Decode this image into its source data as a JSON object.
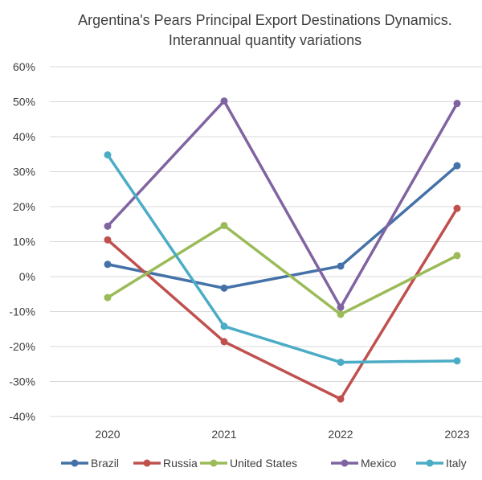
{
  "chart_data": {
    "type": "line",
    "title": [
      "Argentina's Pears Principal Export Destinations Dynamics.",
      "Interannual quantity variations"
    ],
    "xlabel": "",
    "ylabel": "",
    "categories": [
      "2020",
      "2021",
      "2022",
      "2023"
    ],
    "ylim": [
      -40,
      60
    ],
    "yticks": [
      -40,
      -30,
      -20,
      -10,
      0,
      10,
      20,
      30,
      40,
      50,
      60
    ],
    "ytick_labels": [
      "-40%",
      "-30%",
      "-20%",
      "-10%",
      "0%",
      "10%",
      "20%",
      "30%",
      "40%",
      "50%",
      "60%"
    ],
    "grid": true,
    "legend_position": "bottom",
    "series": [
      {
        "name": "Brazil",
        "color": "#4472A8",
        "values": [
          3.5,
          -3.3,
          3.0,
          31.7
        ]
      },
      {
        "name": "Russia",
        "color": "#C0504D",
        "values": [
          10.5,
          -18.6,
          -35.0,
          19.5
        ]
      },
      {
        "name": "United States",
        "color": "#9BBB59",
        "values": [
          -6.0,
          14.6,
          -10.8,
          6.0
        ]
      },
      {
        "name": "Mexico",
        "color": "#8064A2",
        "values": [
          14.4,
          50.2,
          -8.8,
          49.5
        ]
      },
      {
        "name": "Italy",
        "color": "#4BACC6",
        "values": [
          34.8,
          -14.2,
          -24.5,
          -24.1
        ]
      }
    ]
  }
}
